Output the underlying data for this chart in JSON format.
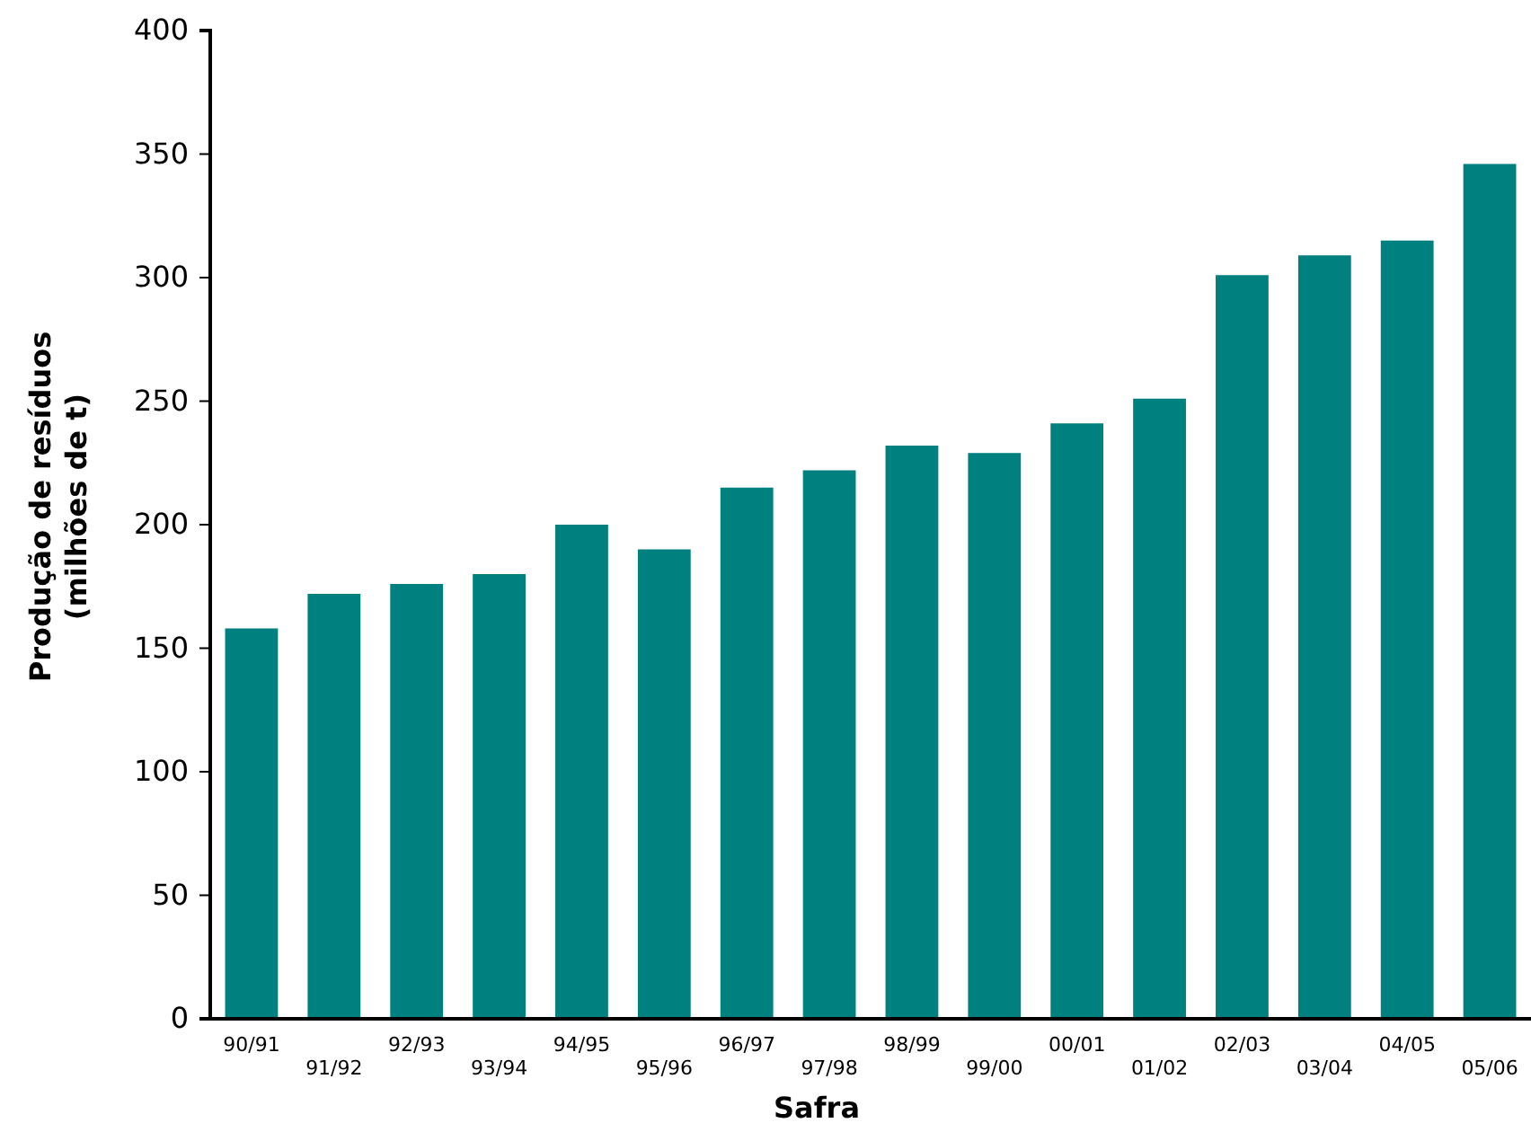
{
  "chart_data": {
    "type": "bar",
    "xlabel": "Safra",
    "ylabel": "Produção de resíduos\n(milhões de t)",
    "categories": [
      "90/91",
      "91/92",
      "92/93",
      "93/94",
      "94/95",
      "95/96",
      "96/97",
      "97/98",
      "98/99",
      "99/00",
      "00/01",
      "01/02",
      "02/03",
      "03/04",
      "04/05",
      "05/06"
    ],
    "values": [
      158,
      172,
      176,
      180,
      200,
      190,
      215,
      222,
      232,
      229,
      241,
      251,
      301,
      309,
      315,
      346
    ],
    "color": "#00807f",
    "ylim": [
      0,
      400
    ],
    "yticks": [
      0,
      50,
      100,
      150,
      200,
      250,
      300,
      350,
      400
    ],
    "grid": false
  }
}
